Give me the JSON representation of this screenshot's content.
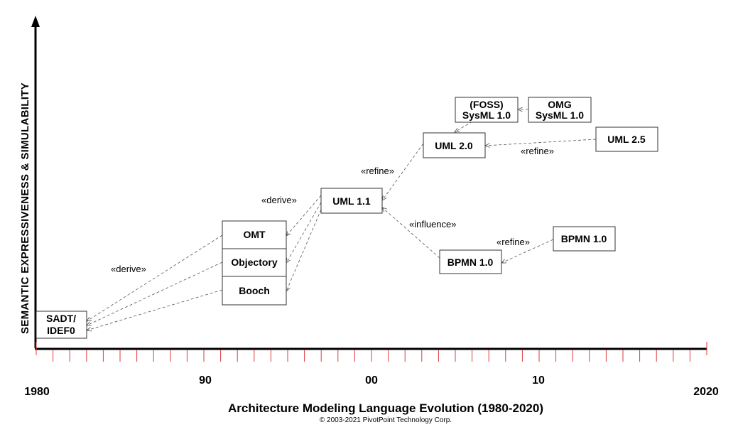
{
  "title": "Architecture Modeling Language Evolution (1980-2020)",
  "copyright": "© 2003-2021 PivotPoint Technology Corp.",
  "y_axis_label": "SEMANTIC  EXPRESSIVENESS & SIMULABILITY",
  "x_axis": {
    "labels": [
      "1980",
      "90",
      "00",
      "10",
      "2020"
    ],
    "start_year": 1980,
    "end_year": 2020
  },
  "nodes": {
    "sadt": [
      "SADT/",
      "IDEF0"
    ],
    "omt": [
      "OMT"
    ],
    "objectory": [
      "Objectory"
    ],
    "booch": [
      "Booch"
    ],
    "uml11": [
      "UML 1.1"
    ],
    "uml20": [
      "UML 2.0"
    ],
    "uml25": [
      "UML 2.5"
    ],
    "foss_sysml": [
      "(FOSS)",
      "SysML 1.0"
    ],
    "omg_sysml": [
      "OMG",
      "SysML 1.0"
    ],
    "bpmn_left": [
      "BPMN 1.0"
    ],
    "bpmn_right": [
      "BPMN 1.0"
    ]
  },
  "edge_labels": {
    "derive_lower": "«derive»",
    "derive_upper": "«derive»",
    "refine_uml": "«refine»",
    "refine_uml25": "«refine»",
    "influence": "«influence»",
    "refine_bpmn": "«refine»"
  },
  "colors": {
    "axis": "#000000",
    "tick": "#e23a3a",
    "edge": "#555555",
    "box_border": "#333333"
  }
}
